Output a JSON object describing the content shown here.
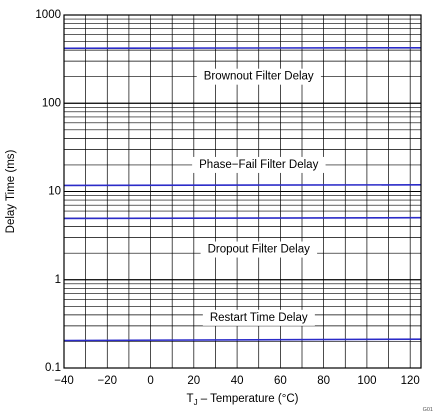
{
  "chart_data": {
    "type": "line",
    "title": "",
    "xlabel": "T",
    "xlabel_sub": "J",
    "xlabel_rest": " – Temperature (°C)",
    "ylabel": "Delay Time (ms)",
    "y_scale": "log",
    "xlim": [
      -40,
      125
    ],
    "ylim": [
      0.1,
      1000
    ],
    "x_ticks": [
      -40,
      -20,
      0,
      20,
      40,
      60,
      80,
      100,
      120
    ],
    "x_tick_labels": [
      "−40",
      "−20",
      "0",
      "20",
      "40",
      "60",
      "80",
      "100",
      "120"
    ],
    "y_ticks": [
      0.1,
      1,
      10,
      100,
      1000
    ],
    "y_tick_labels": [
      "0.1",
      "1",
      "10",
      "100",
      "1000"
    ],
    "grid": true,
    "line_color": "#2b2bc8",
    "series": [
      {
        "x": [
          -40,
          125
        ],
        "y": [
          420,
          425
        ]
      },
      {
        "x": [
          -40,
          20,
          125
        ],
        "y": [
          11.7,
          11.8,
          11.9
        ]
      },
      {
        "x": [
          -40,
          125
        ],
        "y": [
          4.95,
          5.05
        ]
      },
      {
        "x": [
          -40,
          125
        ],
        "y": [
          0.205,
          0.212
        ]
      }
    ],
    "annotations": [
      {
        "text": "Brownout Filter Delay",
        "x": 50,
        "y": 200
      },
      {
        "text": "Phase−Fail Filter Delay",
        "x": 50,
        "y": 20
      },
      {
        "text": "Dropout Filter Delay",
        "x": 50,
        "y": 2.2
      },
      {
        "text": "Restart Time Delay",
        "x": 50,
        "y": 0.37
      }
    ],
    "figure_id": "G01"
  }
}
